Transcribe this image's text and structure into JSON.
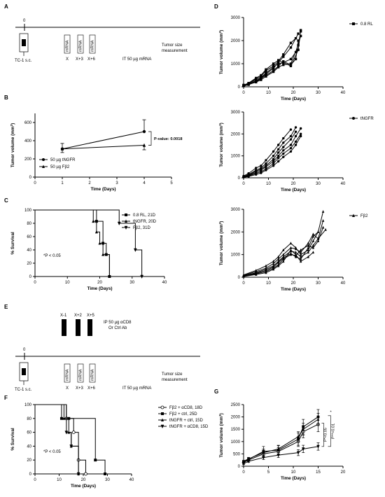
{
  "panels": {
    "A": {
      "letter": "A",
      "tick0": "0",
      "day_labels": [
        "X",
        "X+3",
        "X+6"
      ],
      "tc1": "TC-1 s.c.",
      "tumor_size": "Tumor size",
      "measurement": "measurement",
      "it": "IT 50 µg mRNA",
      "vial": "mRNA"
    },
    "E": {
      "letter": "E",
      "tick0": "0",
      "ab_labels": [
        "X-1",
        "X+2",
        "X+5"
      ],
      "day_labels": [
        "X",
        "X+3",
        "X+6"
      ],
      "ip_line1": "IP 50 µg αCD8",
      "ip_line2": "Or Ctrl Ab",
      "tc1": "TC-1 s.c.",
      "tumor_size": "Tumor size",
      "measurement": "measurement",
      "it": "IT 50 µg mRNA",
      "vial": "mRNA"
    }
  },
  "chart_data": [
    {
      "id": "B",
      "letter": "B",
      "type": "line",
      "xlabel": "Time (Days)",
      "ylabel": "Tumor volume (mm3)",
      "xlim": [
        0,
        5
      ],
      "ylim": [
        0,
        700
      ],
      "xticks": [
        0,
        1,
        2,
        3,
        4,
        5
      ],
      "yticks": [
        0,
        200,
        400,
        600
      ],
      "annotation": "P-value: 0.0018",
      "series": [
        {
          "name": "50 µg tNGFR",
          "marker": "circle",
          "x": [
            1,
            4
          ],
          "y": [
            310,
            500
          ],
          "err": [
            60,
            130
          ]
        },
        {
          "name": "50 µg Fβ2",
          "marker": "triangle",
          "x": [
            1,
            4
          ],
          "y": [
            310,
            350
          ],
          "err": [
            40,
            50
          ]
        }
      ]
    },
    {
      "id": "C",
      "letter": "C",
      "type": "line",
      "xlabel": "Time (Days)",
      "ylabel": "% Survival",
      "xlim": [
        0,
        40
      ],
      "ylim": [
        0,
        100
      ],
      "xticks": [
        0,
        10,
        20,
        30,
        40
      ],
      "yticks": [
        0,
        20,
        40,
        60,
        80,
        100
      ],
      "annotation": "*P < 0.05",
      "series": [
        {
          "name": "0.8 RL, 21D",
          "marker": "square",
          "x": [
            0,
            19,
            21,
            22,
            23
          ],
          "y": [
            100,
            83,
            50,
            33,
            0
          ]
        },
        {
          "name": "tNGFR, 20D",
          "marker": "triangle",
          "x": [
            0,
            18,
            19,
            20,
            21,
            23
          ],
          "y": [
            100,
            83,
            67,
            50,
            33,
            0
          ]
        },
        {
          "name": "Fβ2, 31D",
          "marker": "triangle-down",
          "x": [
            0,
            26,
            31,
            33
          ],
          "y": [
            100,
            80,
            40,
            0
          ]
        }
      ]
    },
    {
      "id": "D1",
      "letter": "D",
      "type": "line",
      "xlabel": "Time (Days)",
      "ylabel": "Tumor volume (mm3)",
      "xlim": [
        0,
        40
      ],
      "ylim": [
        0,
        3000
      ],
      "xticks": [
        0,
        10,
        20,
        30,
        40
      ],
      "yticks": [
        0,
        1000,
        2000,
        3000
      ],
      "legend": "0.8 RL",
      "marker": "square",
      "series": [
        {
          "x": [
            0,
            2,
            5,
            7,
            9,
            12,
            14,
            16,
            19,
            21
          ],
          "y": [
            80,
            150,
            350,
            450,
            700,
            900,
            1100,
            1400,
            1900,
            2100
          ]
        },
        {
          "x": [
            0,
            2,
            5,
            7,
            9,
            12,
            14,
            16,
            19,
            22
          ],
          "y": [
            50,
            120,
            250,
            380,
            550,
            800,
            1050,
            1300,
            1700,
            2300
          ]
        },
        {
          "x": [
            0,
            2,
            5,
            7,
            9,
            12,
            14,
            16,
            19,
            22,
            23
          ],
          "y": [
            40,
            100,
            200,
            300,
            450,
            650,
            850,
            950,
            1000,
            1800,
            2400
          ]
        },
        {
          "x": [
            0,
            2,
            5,
            7,
            9,
            12,
            14,
            16,
            19,
            21,
            23
          ],
          "y": [
            60,
            130,
            300,
            400,
            600,
            850,
            1000,
            1050,
            1200,
            1500,
            2200
          ]
        },
        {
          "x": [
            0,
            2,
            5,
            7,
            9,
            12,
            14,
            16,
            19,
            22,
            23
          ],
          "y": [
            70,
            160,
            380,
            500,
            750,
            1000,
            1150,
            1050,
            900,
            1600,
            2450
          ]
        },
        {
          "x": [
            0,
            2,
            5,
            7,
            9,
            12,
            14,
            16,
            19,
            21,
            22
          ],
          "y": [
            30,
            90,
            220,
            350,
            500,
            700,
            900,
            1100,
            950,
            1200,
            2000
          ]
        }
      ]
    },
    {
      "id": "D2",
      "type": "line",
      "xlabel": "Time (Days)",
      "ylabel": "Tumor volume (mm3)",
      "xlim": [
        0,
        40
      ],
      "ylim": [
        0,
        3000
      ],
      "xticks": [
        0,
        10,
        20,
        30,
        40
      ],
      "yticks": [
        0,
        1000,
        2000,
        3000
      ],
      "legend": "tNGFR",
      "marker": "circle",
      "series": [
        {
          "x": [
            0,
            2,
            5,
            7,
            9,
            12,
            14,
            16,
            19
          ],
          "y": [
            80,
            200,
            450,
            550,
            800,
            1200,
            1500,
            1800,
            2200
          ]
        },
        {
          "x": [
            0,
            2,
            5,
            7,
            9,
            12,
            14,
            16,
            19,
            21
          ],
          "y": [
            60,
            150,
            350,
            450,
            650,
            1000,
            1300,
            1600,
            1900,
            2300
          ]
        },
        {
          "x": [
            0,
            2,
            5,
            7,
            9,
            12,
            14,
            16,
            19,
            21
          ],
          "y": [
            50,
            120,
            300,
            400,
            550,
            850,
            1150,
            1400,
            1750,
            2100
          ]
        },
        {
          "x": [
            0,
            2,
            5,
            7,
            9,
            12,
            14,
            16,
            19,
            21,
            23
          ],
          "y": [
            40,
            100,
            250,
            350,
            500,
            750,
            1000,
            1250,
            1500,
            1900,
            2250
          ]
        },
        {
          "x": [
            0,
            2,
            5,
            7,
            9,
            12,
            14,
            16,
            19,
            21,
            23
          ],
          "y": [
            30,
            80,
            200,
            280,
            400,
            650,
            900,
            1100,
            1350,
            1650,
            2000
          ]
        },
        {
          "x": [
            0,
            2,
            5,
            7,
            9,
            12,
            14,
            16,
            19,
            21,
            23
          ],
          "y": [
            20,
            60,
            150,
            220,
            350,
            550,
            750,
            950,
            1200,
            1500,
            1900
          ]
        }
      ]
    },
    {
      "id": "D3",
      "type": "line",
      "xlabel": "Time (Days)",
      "ylabel": "Tumor volume (mm3)",
      "xlim": [
        0,
        40
      ],
      "ylim": [
        0,
        3000
      ],
      "xticks": [
        0,
        10,
        20,
        30,
        40
      ],
      "yticks": [
        0,
        1000,
        2000,
        3000
      ],
      "legend": "Fβ2",
      "marker": "triangle",
      "series": [
        {
          "x": [
            0,
            5,
            9,
            12,
            14,
            16,
            19,
            21,
            23,
            26,
            28,
            30,
            32
          ],
          "y": [
            100,
            300,
            500,
            700,
            900,
            1200,
            1500,
            1300,
            1000,
            1200,
            1600,
            2000,
            2900
          ]
        },
        {
          "x": [
            0,
            5,
            9,
            12,
            14,
            16,
            19,
            21,
            23,
            26,
            28,
            30,
            33
          ],
          "y": [
            80,
            250,
            400,
            600,
            800,
            1000,
            1300,
            1250,
            1100,
            1500,
            1900,
            1700,
            2100
          ]
        },
        {
          "x": [
            0,
            5,
            9,
            12,
            14,
            16,
            19,
            21,
            23,
            26,
            28,
            30,
            32
          ],
          "y": [
            60,
            200,
            350,
            500,
            700,
            900,
            1150,
            1100,
            900,
            1100,
            1400,
            1700,
            2500
          ]
        },
        {
          "x": [
            0,
            5,
            9,
            12,
            14,
            16,
            19,
            21,
            23,
            26,
            28,
            30
          ],
          "y": [
            50,
            180,
            300,
            450,
            650,
            850,
            1050,
            900,
            800,
            1300,
            1800,
            2000
          ]
        },
        {
          "x": [
            0,
            5,
            9,
            12,
            14,
            16,
            19,
            21,
            23,
            26,
            28,
            30,
            32
          ],
          "y": [
            40,
            150,
            250,
            400,
            550,
            800,
            1000,
            950,
            1200,
            1400,
            1300,
            1600,
            2200
          ]
        },
        {
          "x": [
            0,
            5,
            9,
            12,
            14,
            16,
            19,
            21,
            23,
            26,
            28
          ],
          "y": [
            30,
            120,
            200,
            350,
            500,
            700,
            1200,
            1000,
            700,
            900,
            1100
          ]
        }
      ]
    },
    {
      "id": "F",
      "letter": "F",
      "type": "line",
      "xlabel": "Time (Days)",
      "ylabel": "% Survival",
      "xlim": [
        0,
        40
      ],
      "ylim": [
        0,
        100
      ],
      "xticks": [
        0,
        10,
        20,
        30,
        40
      ],
      "yticks": [
        0,
        20,
        40,
        60,
        80,
        100
      ],
      "annotation": "*P < 0.05",
      "series": [
        {
          "name": "Fβ2 + αCD8, 18D",
          "marker": "circle",
          "x": [
            0,
            13,
            16,
            18,
            21
          ],
          "y": [
            100,
            80,
            60,
            20,
            0
          ]
        },
        {
          "name": "Fβ2 + ctrl, 25D",
          "marker": "square",
          "x": [
            0,
            11,
            14,
            25,
            29
          ],
          "y": [
            100,
            80,
            80,
            20,
            0
          ]
        },
        {
          "name": "tNGFR + ctrl, 15D",
          "marker": "triangle",
          "x": [
            0,
            12,
            14,
            15,
            18
          ],
          "y": [
            100,
            80,
            60,
            40,
            0
          ]
        },
        {
          "name": "tNGFR + αCD8, 15D",
          "marker": "triangle-down",
          "x": [
            0,
            13,
            15,
            18
          ],
          "y": [
            100,
            60,
            40,
            0
          ]
        }
      ]
    },
    {
      "id": "G",
      "letter": "G",
      "type": "line",
      "xlabel": "Time (Days)",
      "ylabel": "Tumor volume (mm3)",
      "xlim": [
        0,
        20
      ],
      "ylim": [
        0,
        2500
      ],
      "xticks": [
        0,
        5,
        10,
        15,
        20
      ],
      "yticks": [
        0,
        500,
        1000,
        1500,
        2000,
        2500
      ],
      "annotation1": "P*<0.05",
      "annotation2": "P**<0.01",
      "annotation3": "*",
      "series": [
        {
          "marker": "circle",
          "x": [
            0,
            1,
            4,
            7,
            11,
            12,
            15
          ],
          "y": [
            150,
            250,
            500,
            600,
            1000,
            1400,
            1700
          ],
          "err": [
            40,
            50,
            150,
            150,
            200,
            250,
            300
          ]
        },
        {
          "marker": "square",
          "x": [
            0,
            1,
            4,
            7,
            11,
            12,
            15
          ],
          "y": [
            180,
            280,
            600,
            650,
            1100,
            1600,
            2000
          ],
          "err": [
            40,
            60,
            200,
            180,
            250,
            300,
            300
          ]
        },
        {
          "marker": "triangle",
          "x": [
            0,
            1,
            4,
            7,
            11,
            12,
            15
          ],
          "y": [
            200,
            300,
            550,
            700,
            1200,
            1500,
            1900
          ],
          "err": [
            40,
            60,
            150,
            150,
            200,
            250,
            250
          ]
        },
        {
          "marker": "triangle-down",
          "x": [
            0,
            1,
            4,
            7,
            11,
            12,
            15
          ],
          "y": [
            100,
            200,
            350,
            450,
            550,
            700,
            800
          ],
          "err": [
            30,
            40,
            80,
            100,
            120,
            150,
            150
          ]
        }
      ]
    }
  ]
}
